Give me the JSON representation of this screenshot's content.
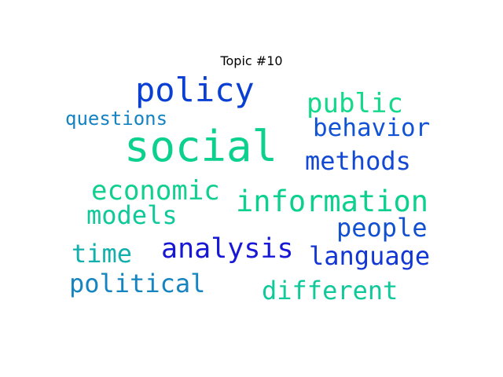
{
  "title": "Topic #10",
  "words": [
    {
      "text": "social",
      "color": "#0bd08e"
    },
    {
      "text": "policy",
      "color": "#0a3fd4"
    },
    {
      "text": "information",
      "color": "#0bd08e"
    },
    {
      "text": "analysis",
      "color": "#1717d6"
    },
    {
      "text": "public",
      "color": "#14d88a"
    },
    {
      "text": "economic",
      "color": "#10cf8f"
    },
    {
      "text": "behavior",
      "color": "#1253d6"
    },
    {
      "text": "methods",
      "color": "#1249d4"
    },
    {
      "text": "models",
      "color": "#10c99a"
    },
    {
      "text": "people",
      "color": "#1250d2"
    },
    {
      "text": "language",
      "color": "#1237d4"
    },
    {
      "text": "political",
      "color": "#1584c0"
    },
    {
      "text": "different",
      "color": "#10c99a"
    },
    {
      "text": "time",
      "color": "#12b0ad"
    },
    {
      "text": "questions",
      "color": "#1583c2"
    }
  ]
}
